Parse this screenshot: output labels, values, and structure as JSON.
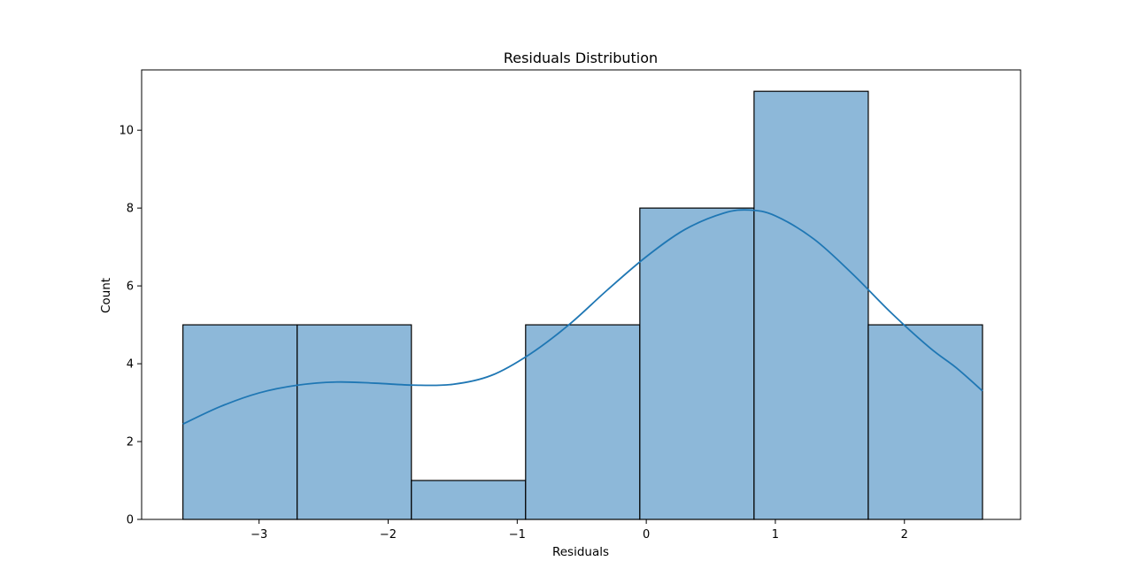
{
  "chart_data": {
    "type": "bar",
    "title": "Residuals Distribution",
    "xlabel": "Residuals",
    "ylabel": "Count",
    "xlim": [
      -3.91,
      2.9
    ],
    "ylim": [
      0,
      11.55
    ],
    "xticks": [
      -3,
      -2,
      -1,
      0,
      1,
      2
    ],
    "xtick_labels": [
      "−3",
      "−2",
      "−1",
      "0",
      "1",
      "2"
    ],
    "yticks": [
      0,
      2,
      4,
      6,
      8,
      10
    ],
    "ytick_labels": [
      "0",
      "2",
      "4",
      "6",
      "8",
      "10"
    ],
    "bins": [
      {
        "x0": -3.59,
        "x1": -2.705,
        "count": 5
      },
      {
        "x0": -2.705,
        "x1": -1.82,
        "count": 5
      },
      {
        "x0": -1.82,
        "x1": -0.935,
        "count": 1
      },
      {
        "x0": -0.935,
        "x1": -0.05,
        "count": 5
      },
      {
        "x0": -0.05,
        "x1": 0.835,
        "count": 8
      },
      {
        "x0": 0.835,
        "x1": 1.72,
        "count": 11
      },
      {
        "x0": 1.72,
        "x1": 2.605,
        "count": 5
      }
    ],
    "kde": {
      "x": [
        -3.59,
        -3.3,
        -3.0,
        -2.7,
        -2.4,
        -2.1,
        -1.8,
        -1.5,
        -1.2,
        -0.9,
        -0.6,
        -0.3,
        0.0,
        0.3,
        0.6,
        0.8,
        1.0,
        1.3,
        1.6,
        1.9,
        2.2,
        2.4,
        2.605
      ],
      "y": [
        2.45,
        2.9,
        3.25,
        3.45,
        3.53,
        3.5,
        3.45,
        3.47,
        3.7,
        4.25,
        5.0,
        5.9,
        6.75,
        7.45,
        7.87,
        7.95,
        7.8,
        7.2,
        6.3,
        5.3,
        4.4,
        3.9,
        3.3
      ]
    },
    "colors": {
      "bar_fill": "#8db8d9",
      "bar_edge": "#000000",
      "kde_line": "#1f77b4"
    },
    "grid": false,
    "legend": "none"
  }
}
